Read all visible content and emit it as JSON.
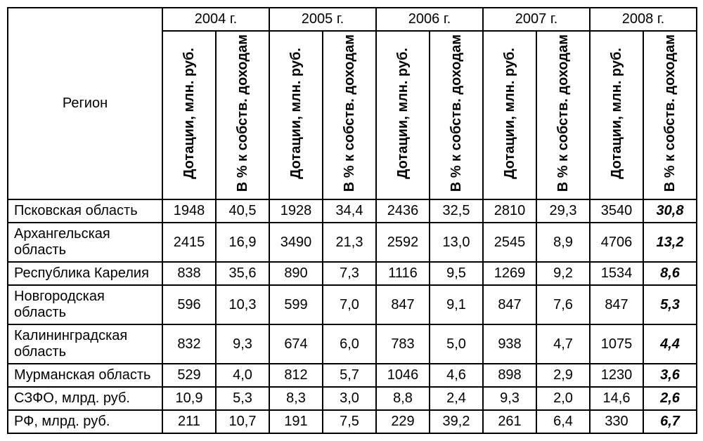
{
  "type": "table",
  "background_color": "#ffffff",
  "text_color": "#000000",
  "border_color": "#000000",
  "font_family": "Arial",
  "header_fontsize": 20,
  "cell_fontsize": 20,
  "years": [
    "2004 г.",
    "2005 г.",
    "2006 г.",
    "2007 г.",
    "2008 г."
  ],
  "region_header": "Регион",
  "subheaders": {
    "dot": "Дотации, млн. руб.",
    "pct": "В % к собств. доходам"
  },
  "rows": [
    {
      "region": "Псковская область",
      "cells": [
        "1948",
        "40,5",
        "1928",
        "34,4",
        "2436",
        "32,5",
        "2810",
        "29,3",
        "3540",
        "30,8"
      ]
    },
    {
      "region": "Архангельская область",
      "cells": [
        "2415",
        "16,9",
        "3490",
        "21,3",
        "2592",
        "13,0",
        "2545",
        "8,9",
        "4706",
        "13,2"
      ]
    },
    {
      "region": "Республика Карелия",
      "cells": [
        "838",
        "35,6",
        "890",
        "7,3",
        "1116",
        "9,5",
        "1269",
        "9,2",
        "1534",
        "8,6"
      ]
    },
    {
      "region": "Новгородская область",
      "cells": [
        "596",
        "10,3",
        "599",
        "7,0",
        "847",
        "9,1",
        "847",
        "7,6",
        "847",
        "5,3"
      ]
    },
    {
      "region": "Калининградская область",
      "cells": [
        "832",
        "9,3",
        "674",
        "6,0",
        "783",
        "5,0",
        "938",
        "4,7",
        "1075",
        "4,4"
      ]
    },
    {
      "region": "Мурманская область",
      "cells": [
        "529",
        "4,0",
        "812",
        "5,7",
        "1046",
        "4,6",
        "898",
        "2,9",
        "1230",
        "3,6"
      ]
    },
    {
      "region": "СЗФО, млрд. руб.",
      "cells": [
        "10,9",
        "5,3",
        "8,3",
        "3,0",
        "8,8",
        "2,4",
        "9,3",
        "2,0",
        "14,6",
        "2,6"
      ]
    },
    {
      "region": "РФ, млрд. руб.",
      "cells": [
        "211",
        "10,7",
        "191",
        "7,5",
        "229",
        "39,2",
        "261",
        "6,4",
        "330",
        "6,7"
      ]
    }
  ],
  "last_column_italic": true
}
